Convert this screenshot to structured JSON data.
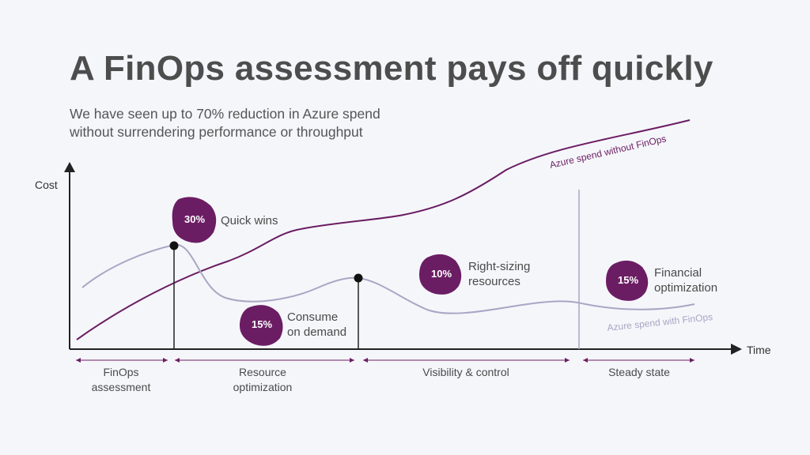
{
  "title": "A FinOps assessment pays off quickly",
  "subtitle": {
    "line1": "We have seen up to 70% reduction in Azure spend",
    "line2": "without surrendering performance or throughput"
  },
  "axes": {
    "y_label": "Cost",
    "x_label": "Time"
  },
  "curves": {
    "without_finops": "Azure spend without FinOps",
    "with_finops": "Azure spend with FinOps"
  },
  "badges": [
    {
      "percent": "30%",
      "label_lines": [
        "Quick wins"
      ]
    },
    {
      "percent": "15%",
      "label_lines": [
        "Consume",
        "on demand"
      ]
    },
    {
      "percent": "10%",
      "label_lines": [
        "Right-sizing",
        "resources"
      ]
    },
    {
      "percent": "15%",
      "label_lines": [
        "Financial",
        "optimization"
      ]
    }
  ],
  "phases": [
    {
      "label_lines": [
        "FinOps",
        "assessment"
      ]
    },
    {
      "label_lines": [
        "Resource",
        "optimization"
      ]
    },
    {
      "label_lines": [
        "Visibility & control"
      ]
    },
    {
      "label_lines": [
        "Steady state"
      ]
    }
  ],
  "colors": {
    "accent": "#6b1d63",
    "light_curve": "#a9a6c4",
    "axis": "#222222",
    "text": "#4a4a4a"
  }
}
